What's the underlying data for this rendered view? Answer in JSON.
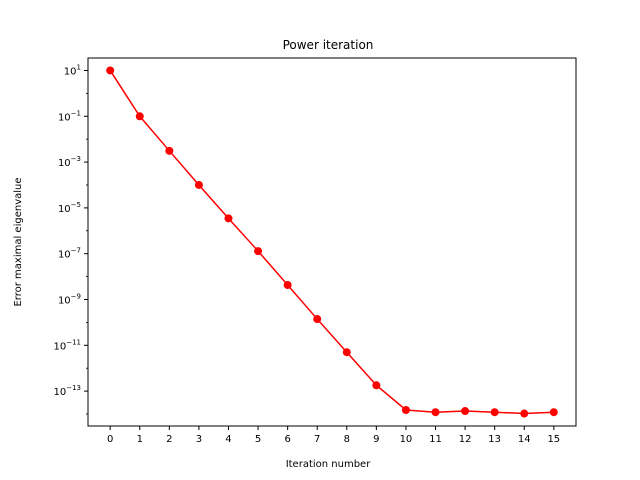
{
  "chart_data": {
    "type": "line",
    "title": "Power iteration",
    "xlabel": "Iteration number",
    "ylabel": "Error maximal eigenvalue",
    "yscale": "log",
    "grid": false,
    "legend": "none",
    "series_color": "#ff0000",
    "x": [
      0,
      1,
      2,
      3,
      4,
      5,
      6,
      7,
      8,
      9,
      10,
      11,
      12,
      13,
      14,
      15
    ],
    "y": [
      10,
      0.1,
      0.0031,
      0.0001,
      3.5e-06,
      1.3e-07,
      4.3e-09,
      1.4e-10,
      5e-12,
      1.8e-13,
      1.5e-14,
      1.2e-14,
      1.35e-14,
      1.2e-14,
      1.05e-14,
      1.2e-14
    ],
    "xticks": [
      "0",
      "1",
      "2",
      "3",
      "4",
      "5",
      "6",
      "7",
      "8",
      "9",
      "10",
      "11",
      "12",
      "13",
      "14",
      "15"
    ],
    "yticks": [
      {
        "base": "10",
        "exp": "1",
        "value": 10
      },
      {
        "base": "10",
        "exp": "−1",
        "value": 0.1
      },
      {
        "base": "10",
        "exp": "−3",
        "value": 0.001
      },
      {
        "base": "10",
        "exp": "−5",
        "value": 1e-05
      },
      {
        "base": "10",
        "exp": "−7",
        "value": 1e-07
      },
      {
        "base": "10",
        "exp": "−9",
        "value": 1e-09
      },
      {
        "base": "10",
        "exp": "−11",
        "value": 1e-11
      },
      {
        "base": "10",
        "exp": "−13",
        "value": 1e-13
      }
    ],
    "xlim": [
      -0.75,
      15.75
    ],
    "ylim": [
      3e-15,
      35
    ]
  }
}
